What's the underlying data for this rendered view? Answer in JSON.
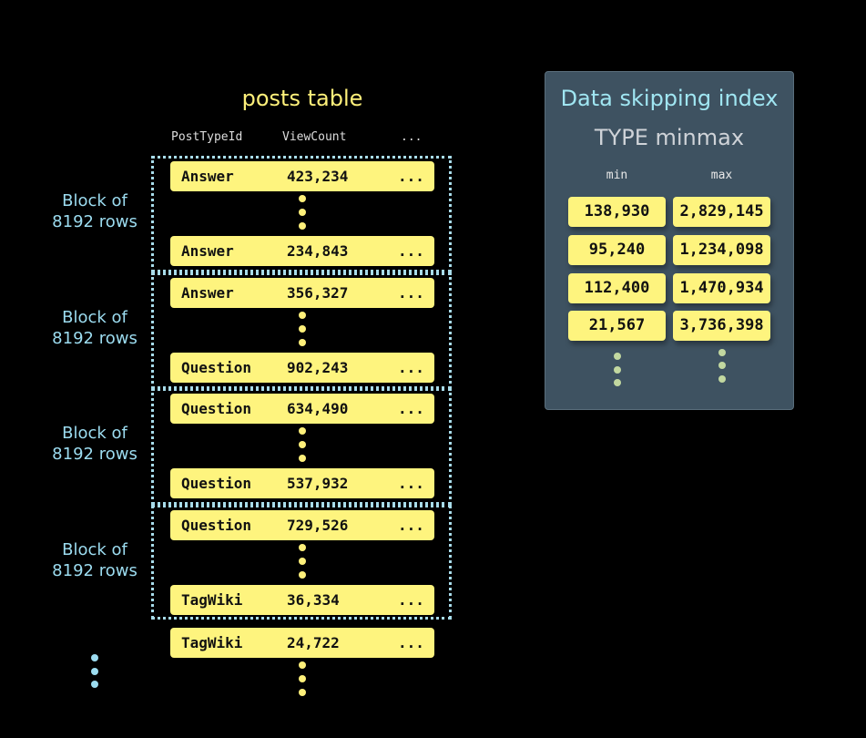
{
  "table": {
    "title": "posts table",
    "columns": [
      "PostTypeId",
      "ViewCount",
      "..."
    ],
    "block_label": [
      "Block of",
      "8192 rows"
    ],
    "blocks": [
      {
        "rows": [
          {
            "type": "Answer",
            "views": "423,234",
            "more": "..."
          },
          {
            "type": "Answer",
            "views": "234,843",
            "more": "..."
          }
        ]
      },
      {
        "rows": [
          {
            "type": "Answer",
            "views": "356,327",
            "more": "..."
          },
          {
            "type": "Question",
            "views": "902,243",
            "more": "..."
          }
        ]
      },
      {
        "rows": [
          {
            "type": "Question",
            "views": "634,490",
            "more": "..."
          },
          {
            "type": "Question",
            "views": "537,932",
            "more": "..."
          }
        ]
      },
      {
        "rows": [
          {
            "type": "Question",
            "views": "729,526",
            "more": "..."
          },
          {
            "type": "TagWiki",
            "views": "36,334",
            "more": "..."
          }
        ]
      }
    ],
    "trailing_row": {
      "type": "TagWiki",
      "views": "24,722",
      "more": "..."
    }
  },
  "index": {
    "title": "Data skipping index",
    "subtitle": "TYPE minmax",
    "min_label": "min",
    "max_label": "max",
    "entries": [
      {
        "min": "138,930",
        "max": "2,829,145"
      },
      {
        "min": "95,240",
        "max": "1,234,098"
      },
      {
        "min": "112,400",
        "max": "1,470,934"
      },
      {
        "min": "21,567",
        "max": "3,736,398"
      }
    ]
  },
  "colors": {
    "row": "#fef47e",
    "title": "#fef07a",
    "accent": "#9cdcf0",
    "panel": "#3e5261",
    "index_dots": "#c2d8a0"
  }
}
